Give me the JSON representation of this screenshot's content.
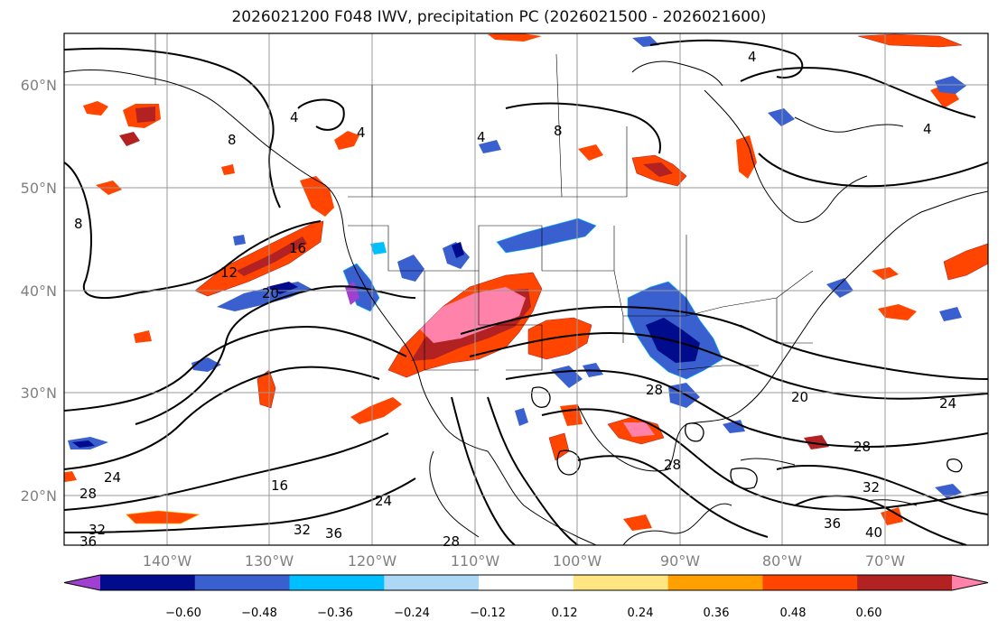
{
  "title": "2026021200 F048 IWV, precipitation PC (2026021500 - 2026021600)",
  "lat_labels": [
    "60°N",
    "50°N",
    "40°N",
    "30°N",
    "20°N"
  ],
  "lon_labels": [
    "140°W",
    "130°W",
    "120°W",
    "110°W",
    "100°W",
    "90°W",
    "80°W",
    "70°W"
  ],
  "colorbar": {
    "tick_labels": [
      "−0.60",
      "−0.48",
      "−0.36",
      "−0.24",
      "−0.12",
      "0.12",
      "0.24",
      "0.36",
      "0.48",
      "0.60"
    ],
    "colors": [
      "#a040d0",
      "#000c8c",
      "#3a5fcf",
      "#00bfff",
      "#add8f5",
      "#ffffff",
      "#ffe680",
      "#ffa000",
      "#ff4500",
      "#b22222",
      "#ff82ab"
    ]
  },
  "contour_labels": {
    "c4a": "4",
    "c4b": "4",
    "c4c": "4",
    "c4d": "4",
    "c4e": "4",
    "c8a": "8",
    "c8b": "8",
    "c8c": "8",
    "c12": "12",
    "c16a": "16",
    "c16b": "16",
    "c20a": "20",
    "c20b": "20",
    "c24a": "24",
    "c24b": "24",
    "c24c": "24",
    "c28a": "28",
    "c28b": "28",
    "c28c": "28",
    "c28d": "28",
    "c28e": "28",
    "c32a": "32",
    "c32b": "32",
    "c32c": "32",
    "c36a": "36",
    "c36b": "36",
    "c36c": "36",
    "c40": "40"
  }
}
